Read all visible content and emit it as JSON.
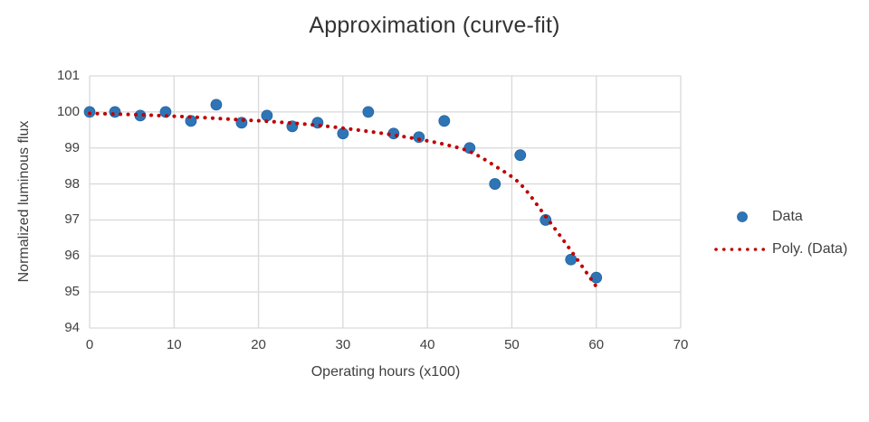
{
  "title": "Approximation (curve-fit)",
  "colors": {
    "marker_blue": "#2E75B6",
    "marker_blue_edge": "#2563A0",
    "trend_red": "#C00000",
    "gridline_gray": "#D9D9D9",
    "text_gray": "#404040",
    "title_gray": "#333333"
  },
  "chart_data": {
    "type": "scatter",
    "title": "Approximation (curve-fit)",
    "xlabel": "Operating hours (x100)",
    "ylabel": "Normalized luminous flux",
    "xlim": [
      0,
      70
    ],
    "ylim": [
      94,
      101
    ],
    "x_ticks": [
      0,
      10,
      20,
      30,
      40,
      50,
      60,
      70
    ],
    "y_ticks": [
      94,
      95,
      96,
      97,
      98,
      99,
      100,
      101
    ],
    "grid": true,
    "legend_position": "right",
    "series": [
      {
        "name": "Data",
        "type": "scatter",
        "color": "#2E75B6",
        "x": [
          0,
          3,
          6,
          9,
          12,
          15,
          18,
          21,
          24,
          27,
          30,
          33,
          36,
          39,
          42,
          45,
          48,
          51,
          54,
          57,
          60
        ],
        "y": [
          100.0,
          100.0,
          99.9,
          100.0,
          99.75,
          100.2,
          99.7,
          99.9,
          99.6,
          99.7,
          99.4,
          100.0,
          99.4,
          99.3,
          99.75,
          99.0,
          98.0,
          98.8,
          97.0,
          95.9,
          95.4
        ]
      },
      {
        "name": "Poly. (Data)",
        "type": "dotted-line",
        "color": "#C00000",
        "x": [
          0,
          3,
          6,
          9,
          12,
          15,
          18,
          21,
          24,
          27,
          30,
          33,
          36,
          39,
          42,
          45,
          48,
          51,
          54,
          57,
          60
        ],
        "y": [
          99.96,
          99.94,
          99.92,
          99.89,
          99.86,
          99.82,
          99.78,
          99.74,
          99.69,
          99.63,
          99.55,
          99.46,
          99.36,
          99.24,
          99.1,
          98.9,
          98.5,
          98.0,
          97.1,
          96.15,
          95.15
        ]
      }
    ]
  },
  "legend": {
    "items": [
      {
        "label": "Data"
      },
      {
        "label": "Poly. (Data)"
      }
    ]
  }
}
